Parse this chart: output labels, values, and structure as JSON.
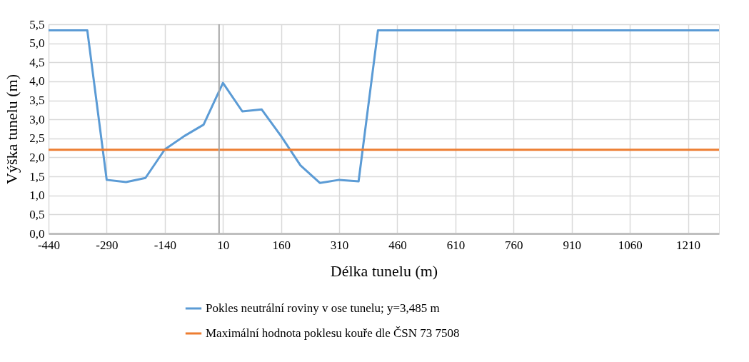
{
  "chart_data": {
    "type": "line",
    "xlabel": "Délka tunelu (m)",
    "ylabel": "Výška tunelu (m)",
    "xlim": [
      -440,
      1290
    ],
    "xticks": [
      -440,
      -290,
      -140,
      10,
      160,
      310,
      460,
      610,
      760,
      910,
      1060,
      1210
    ],
    "ylim": [
      0,
      5.5
    ],
    "yticks": [
      {
        "value": 0,
        "label": "0,0"
      },
      {
        "value": 0.5,
        "label": "0,5"
      },
      {
        "value": 1,
        "label": "1,0"
      },
      {
        "value": 1.5,
        "label": "1,5"
      },
      {
        "value": 2,
        "label": "2,0"
      },
      {
        "value": 2.5,
        "label": "2,5"
      },
      {
        "value": 3,
        "label": "3,0"
      },
      {
        "value": 3.5,
        "label": "3,5"
      },
      {
        "value": 4,
        "label": "4,0"
      },
      {
        "value": 4.5,
        "label": "4,5"
      },
      {
        "value": 5,
        "label": "5,0"
      },
      {
        "value": 5.5,
        "label": "5,5"
      }
    ],
    "grid": true,
    "legend": "bottom",
    "marker": "none",
    "line_style": "solid",
    "ref_lines": [
      {
        "axis": "x",
        "value": 0,
        "color": "#a6a6a6"
      }
    ],
    "series": [
      {
        "name": "Pokles neutrální roviny v ose tunelu; y=3,485 m",
        "color": "#5b9bd5",
        "x": [
          -440,
          -340,
          -290,
          -240,
          -190,
          -140,
          -90,
          -40,
          10,
          60,
          110,
          160,
          210,
          260,
          310,
          360,
          410,
          1290
        ],
        "values": [
          5.34,
          5.34,
          1.41,
          1.35,
          1.46,
          2.21,
          2.56,
          2.86,
          3.96,
          3.21,
          3.26,
          2.56,
          1.79,
          1.33,
          1.41,
          1.37,
          5.34,
          5.34
        ]
      },
      {
        "name": "Maximální hodnota poklesu kouře dle ČSN 73 7508",
        "color": "#ed7d31",
        "x": [
          -440,
          1290
        ],
        "values": [
          2.2,
          2.2
        ]
      }
    ]
  }
}
